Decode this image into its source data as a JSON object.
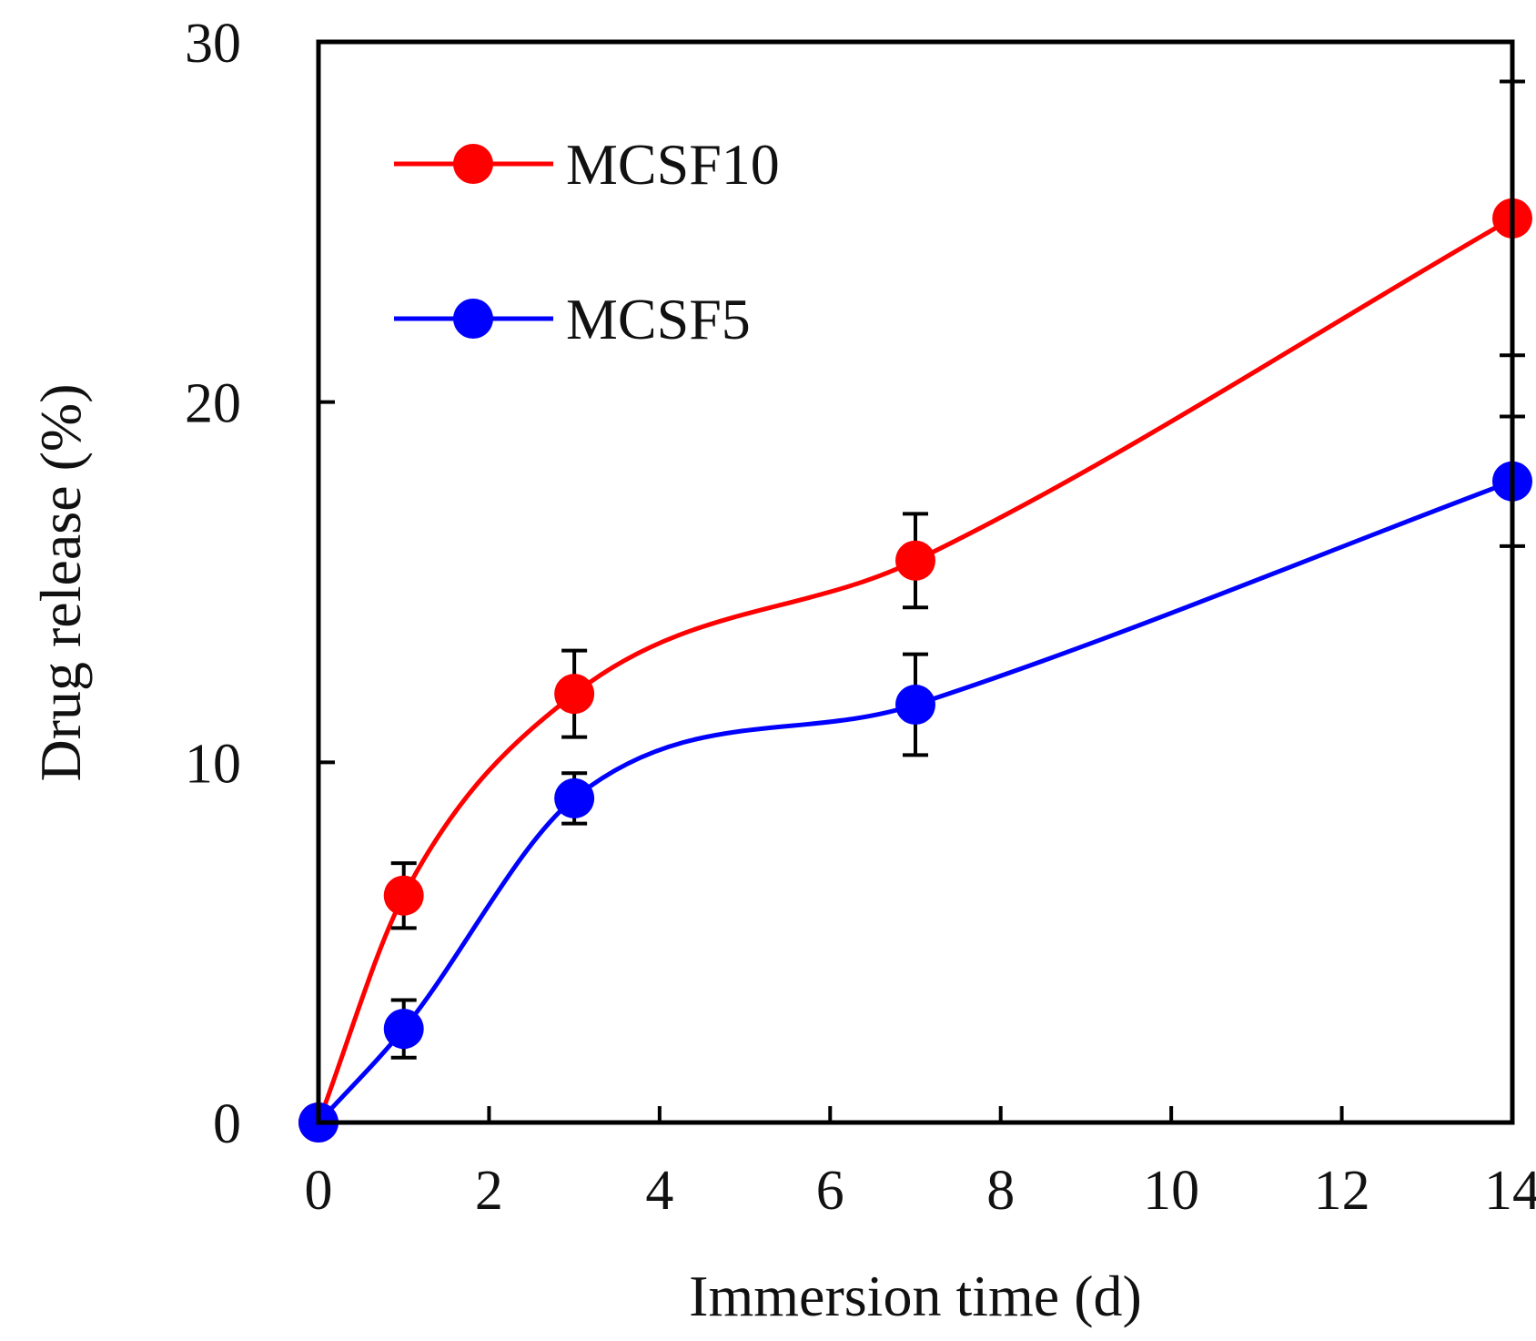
{
  "chart_data": {
    "type": "line",
    "title": "",
    "xlabel": "Immersion time (d)",
    "ylabel": "Drug release (%)",
    "xlim": [
      0,
      14
    ],
    "ylim": [
      0,
      30
    ],
    "xticks": [
      "0",
      "2",
      "4",
      "6",
      "8",
      "10",
      "12",
      "14"
    ],
    "yticks": [
      "0",
      "10",
      "20",
      "30"
    ],
    "grid": false,
    "legend_position": "top-left",
    "line_style": "smooth",
    "series": [
      {
        "name": "MCSF10",
        "color": "#ff0000",
        "x": [
          0,
          1,
          3,
          7,
          14
        ],
        "y": [
          0,
          6.3,
          11.9,
          15.6,
          25.1
        ],
        "error": [
          0,
          0.9,
          1.2,
          1.3,
          3.8
        ]
      },
      {
        "name": "MCSF5",
        "color": "#0000ff",
        "x": [
          0,
          1,
          3,
          7,
          14
        ],
        "y": [
          0,
          2.6,
          9.0,
          11.6,
          17.8
        ],
        "error": [
          0,
          0.8,
          0.7,
          1.4,
          1.8
        ]
      }
    ]
  }
}
